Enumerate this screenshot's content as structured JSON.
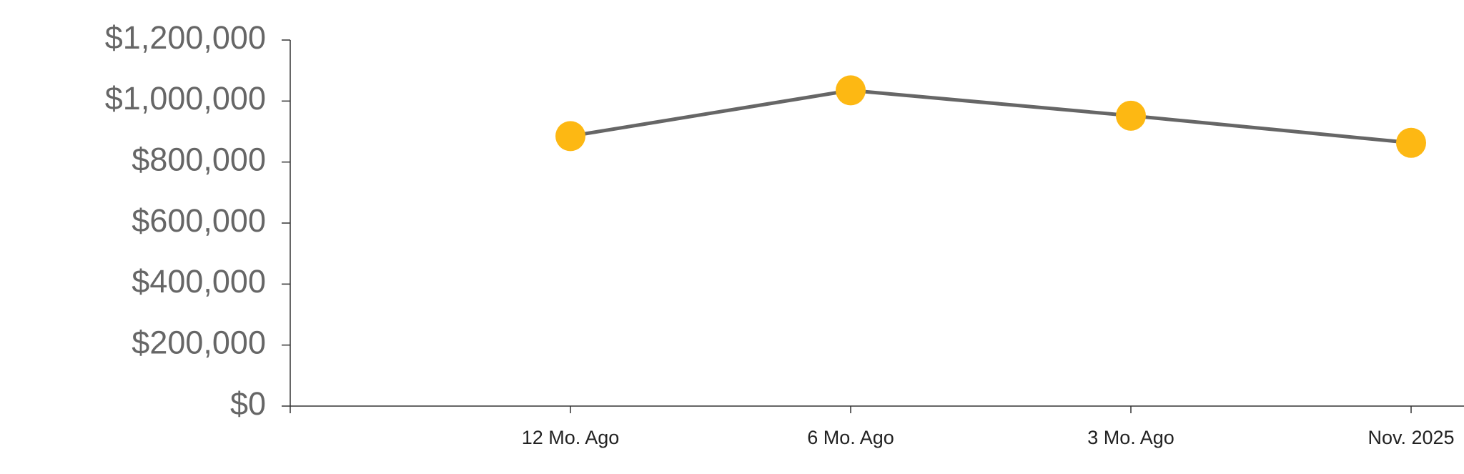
{
  "chart_data": {
    "type": "line",
    "categories": [
      null,
      "12 Mo. Ago",
      "6 Mo. Ago",
      "3 Mo. Ago",
      "Nov. 2025"
    ],
    "series": [
      {
        "values": [
          null,
          885000,
          1035000,
          952000,
          863000
        ],
        "color": "#666666",
        "marker_color": "#fdb813"
      }
    ],
    "ylim": [
      0,
      1200000
    ],
    "yticks": [
      {
        "value": 0,
        "label": "$0"
      },
      {
        "value": 200000,
        "label": "$200,000"
      },
      {
        "value": 400000,
        "label": "$400,000"
      },
      {
        "value": 600000,
        "label": "$600,000"
      },
      {
        "value": 800000,
        "label": "$800,000"
      },
      {
        "value": 1000000,
        "label": "$1,000,000"
      },
      {
        "value": 1200000,
        "label": "$1,200,000"
      }
    ],
    "grid": false
  }
}
